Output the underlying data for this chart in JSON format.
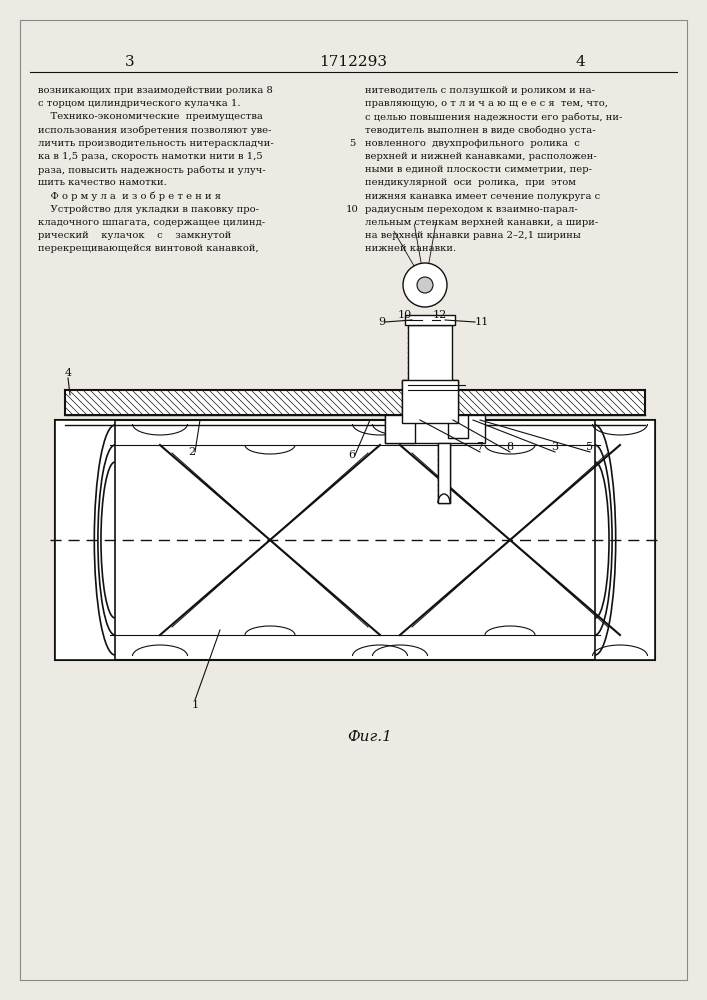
{
  "page_color": "#edeae4",
  "page_num_left": "3",
  "page_num_center": "1712293",
  "page_num_right": "4",
  "left_col_text": [
    "возникающих при взаимодействии ролика 8",
    "с торцом цилиндрического кулачка 1.",
    "    Технико-экономические  преимущества",
    "использования изобретения позволяют уве-",
    "личить производительность нитераскладчи-",
    "ка в 1,5 раза, скорость намотки нити в 1,5",
    "раза, повысить надежность работы и улуч-",
    "шить качество намотки.",
    "    Ф о р м у л а  и з о б р е т е н и я",
    "    Устройство для укладки в паковку про-",
    "кладочного шпагата, содержащее цилинд-",
    "рический    кулачок    с    замкнутой",
    "перекрещивающейся винтовой канавкой,"
  ],
  "right_col_text": [
    "нитеводитель с ползушкой и роликом и на-",
    "правляющую, о т л и ч а ю щ е е с я  тем, что,",
    "с целью повышения надежности его работы, ни-",
    "теводитель выполнен в виде свободно уста-",
    "новленного  двухпрофильного  ролика  с",
    "верхней и нижней канавками, расположен-",
    "ными в единой плоскости симметрии, пер-",
    "пендикулярной  оси  ролика,  при  этом",
    "нижняя канавка имеет сечение полукруга с",
    "радиусным переходом к взаимно-парал-",
    "лельным стенкам верхней канавки, а шири-",
    "на верхней канавки равна 2–2,1 ширины",
    "нижней канавки."
  ],
  "fig_caption": "Фиг.1",
  "draw_color": "#111111"
}
